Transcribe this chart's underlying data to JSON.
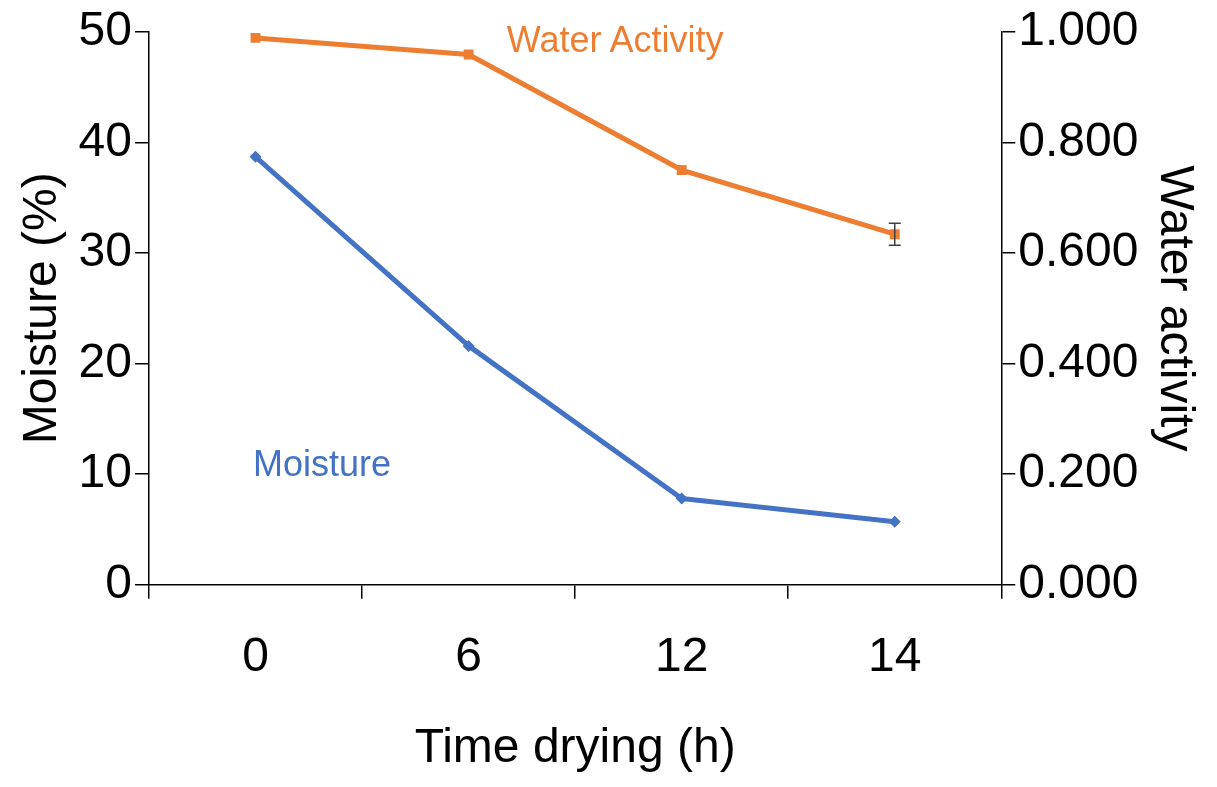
{
  "chart_data": {
    "type": "line",
    "xlabel": "Time drying (h)",
    "ylabel": "Moisture (%)",
    "y2label": "Water activity",
    "categories": [
      "0",
      "6",
      "12",
      "14"
    ],
    "series": [
      {
        "name": "Moisture",
        "color": "#4472c4",
        "values": [
          38.7,
          21.6,
          7.8,
          5.7
        ],
        "marker": "diamond"
      },
      {
        "name": "Water Activity",
        "color": "#ed7d31",
        "values": [
          0.989,
          0.959,
          0.75,
          0.634
        ],
        "axis": "y2",
        "marker": "square",
        "errors": [
          null,
          null,
          null,
          0.02
        ]
      }
    ],
    "ylim": [
      0,
      50
    ],
    "yticks": [
      0,
      10,
      20,
      30,
      40,
      50
    ],
    "y2lim": [
      0,
      1
    ],
    "y2ticks": [
      {
        "value": 0,
        "label": "0.000"
      },
      {
        "value": 0.2,
        "label": "0.200"
      },
      {
        "value": 0.4,
        "label": "0.400"
      },
      {
        "value": 0.6,
        "label": "0.600"
      },
      {
        "value": 0.8,
        "label": "0.800"
      },
      {
        "value": 1,
        "label": "1.000"
      }
    ],
    "grid": false,
    "legend": false,
    "line_style": "solid"
  }
}
